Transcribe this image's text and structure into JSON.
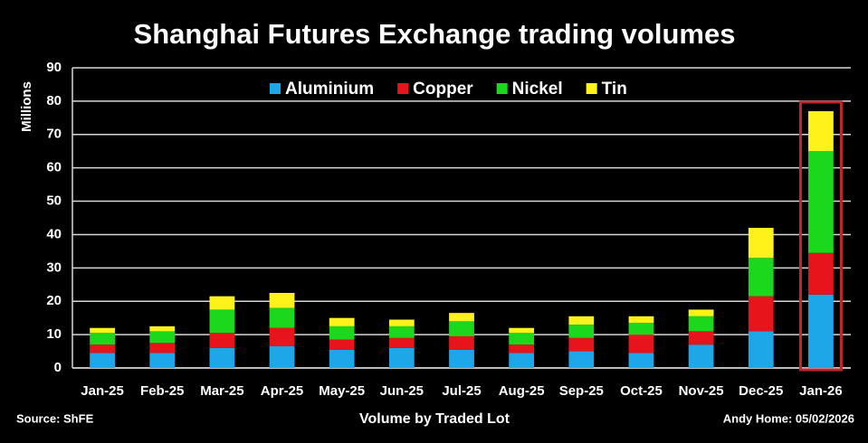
{
  "chart_data": {
    "type": "bar",
    "stacked": true,
    "title": "Shanghai Futures Exchange trading volumes",
    "y_label": "Millions",
    "x_label": "Volume by Traded Lot",
    "source": "Source: ShFE",
    "credit": "Andy Home: 05/02/2026",
    "categories": [
      "Jan-25",
      "Feb-25",
      "Mar-25",
      "Apr-25",
      "May-25",
      "Jun-25",
      "Jul-25",
      "Aug-25",
      "Sep-25",
      "Oct-25",
      "Nov-25",
      "Dec-25",
      "Jan-26"
    ],
    "series": [
      {
        "name": "Aluminium",
        "color": "#1ea7e8",
        "values": [
          4.5,
          4.5,
          6,
          6.5,
          5.5,
          6,
          5.5,
          4.5,
          5,
          4.5,
          7,
          11,
          22
        ]
      },
      {
        "name": "Copper",
        "color": "#e8141b",
        "values": [
          2.5,
          3,
          4.5,
          5.5,
          3,
          3,
          4,
          2.5,
          4,
          5.5,
          4,
          10.5,
          12.5
        ]
      },
      {
        "name": "Nickel",
        "color": "#1cd81c",
        "values": [
          3.5,
          3.5,
          7,
          6,
          4,
          3.5,
          4.5,
          3.5,
          4,
          3.5,
          4.5,
          11.5,
          30.5
        ]
      },
      {
        "name": "Tin",
        "color": "#fff21a",
        "values": [
          1.5,
          1.5,
          4,
          4.5,
          2.5,
          2,
          2.5,
          1.5,
          2.5,
          2,
          2,
          9,
          12
        ]
      }
    ],
    "ylim": [
      0,
      90
    ],
    "yticks": [
      0,
      10,
      20,
      30,
      40,
      50,
      60,
      70,
      80,
      90
    ],
    "grid": true,
    "highlight_color": "#c0282d"
  }
}
